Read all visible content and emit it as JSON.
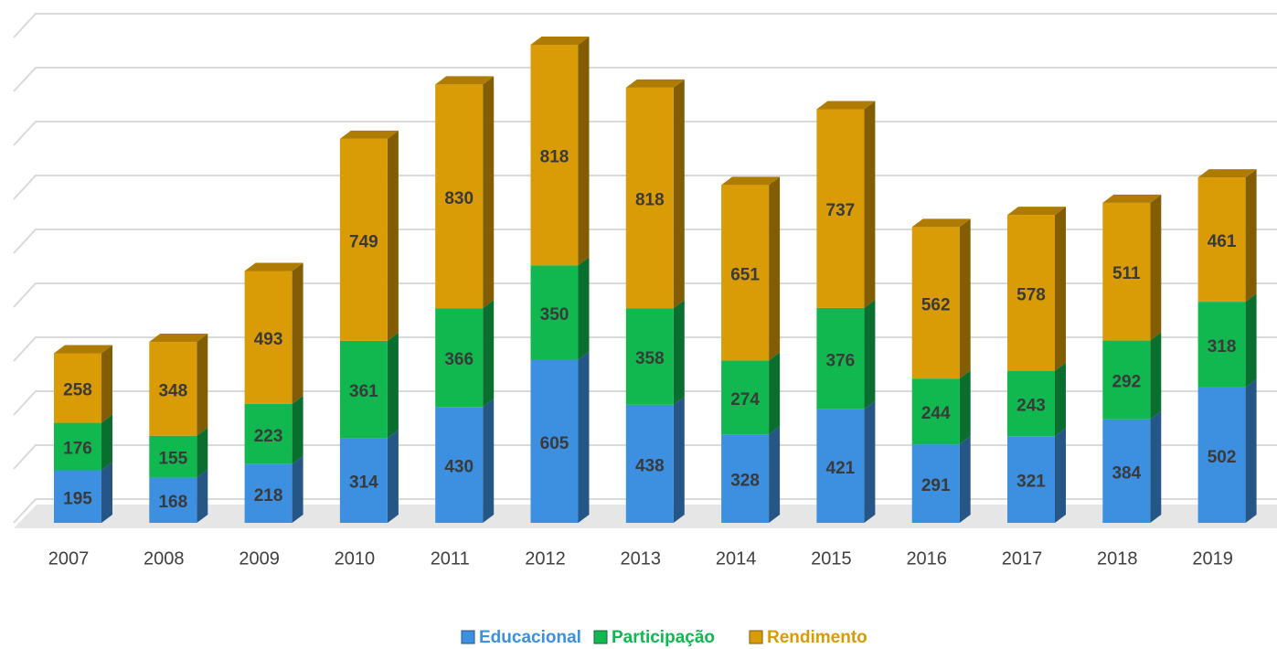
{
  "chart_data": {
    "type": "bar",
    "stacked": true,
    "categories": [
      "2007",
      "2008",
      "2009",
      "2010",
      "2011",
      "2012",
      "2013",
      "2014",
      "2015",
      "2016",
      "2017",
      "2018",
      "2019"
    ],
    "series": [
      {
        "name": "Educacional",
        "color": "#3d8fe0",
        "values": [
          195,
          168,
          218,
          314,
          430,
          605,
          438,
          328,
          421,
          291,
          321,
          384,
          502
        ]
      },
      {
        "name": "Participação",
        "color": "#10b84f",
        "values": [
          176,
          155,
          223,
          361,
          366,
          350,
          358,
          274,
          376,
          244,
          243,
          292,
          318
        ]
      },
      {
        "name": "Rendimento",
        "color": "#d99b06",
        "values": [
          258,
          348,
          493,
          749,
          830,
          818,
          818,
          651,
          737,
          562,
          578,
          511,
          461
        ]
      }
    ],
    "ylim": [
      0,
      1800
    ],
    "yticks": [
      0,
      200,
      400,
      600,
      800,
      1000,
      1200,
      1400,
      1600,
      1800
    ],
    "grid": true,
    "legend": "bottom"
  }
}
